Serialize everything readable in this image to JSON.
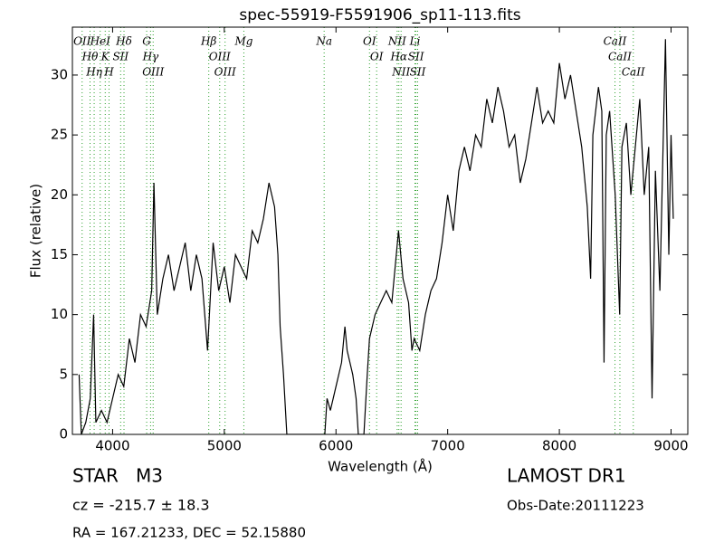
{
  "chart_data": {
    "type": "line",
    "title": "spec-55919-F5591906_sp11-113.fits",
    "x_label": "Wavelength (Å)",
    "y_label": "Flux (relative)",
    "xlim": [
      3640,
      9150
    ],
    "ylim": [
      0,
      34
    ],
    "xticks": [
      4000,
      5000,
      6000,
      7000,
      8000,
      9000
    ],
    "yticks": [
      0,
      5,
      10,
      15,
      20,
      25,
      30
    ],
    "color": "#000000",
    "line_color": "#2ca02c",
    "x": [
      3700,
      3720,
      3760,
      3800,
      3830,
      3850,
      3900,
      3950,
      4000,
      4050,
      4100,
      4150,
      4200,
      4250,
      4300,
      4350,
      4370,
      4400,
      4450,
      4500,
      4550,
      4600,
      4650,
      4700,
      4750,
      4800,
      4850,
      4900,
      4950,
      5000,
      5050,
      5100,
      5150,
      5200,
      5250,
      5300,
      5350,
      5400,
      5450,
      5480,
      5500,
      5530,
      5560,
      5900,
      5920,
      5950,
      6000,
      6050,
      6080,
      6100,
      6150,
      6180,
      6200,
      6250,
      6280,
      6300,
      6350,
      6400,
      6450,
      6500,
      6560,
      6600,
      6650,
      6680,
      6700,
      6750,
      6800,
      6850,
      6900,
      6950,
      7000,
      7050,
      7100,
      7150,
      7200,
      7250,
      7300,
      7350,
      7400,
      7450,
      7500,
      7550,
      7600,
      7650,
      7700,
      7750,
      7800,
      7850,
      7900,
      7950,
      8000,
      8050,
      8100,
      8150,
      8200,
      8250,
      8280,
      8300,
      8350,
      8380,
      8400,
      8420,
      8450,
      8500,
      8540,
      8560,
      8600,
      8640,
      8680,
      8720,
      8760,
      8800,
      8830,
      8860,
      8900,
      8950,
      8980,
      9000,
      9020
    ],
    "series": [
      {
        "values": [
          5,
          0,
          1,
          3,
          10,
          1,
          2,
          1,
          3,
          5,
          4,
          8,
          6,
          10,
          9,
          12,
          21,
          10,
          13,
          15,
          12,
          14,
          16,
          12,
          15,
          13,
          7,
          16,
          12,
          14,
          11,
          15,
          14,
          13,
          17,
          16,
          18,
          21,
          19,
          15,
          9,
          5,
          0,
          0,
          3,
          2,
          4,
          6,
          9,
          7,
          5,
          3,
          0,
          0,
          5,
          8,
          10,
          11,
          12,
          11,
          17,
          13,
          11,
          7,
          8,
          7,
          10,
          12,
          13,
          16,
          20,
          17,
          22,
          24,
          22,
          25,
          24,
          28,
          26,
          29,
          27,
          24,
          25,
          21,
          23,
          26,
          29,
          26,
          27,
          26,
          31,
          28,
          30,
          27,
          24,
          19,
          13,
          25,
          29,
          27,
          6,
          25,
          27,
          20,
          10,
          24,
          26,
          20,
          24,
          28,
          20,
          24,
          3,
          22,
          12,
          33,
          15,
          25,
          18
        ]
      }
    ],
    "lines": [
      {
        "label": "OII",
        "wavelength": 3727
      },
      {
        "label": "Hθ",
        "wavelength": 3798
      },
      {
        "label": "Hη",
        "wavelength": 3835
      },
      {
        "label": "HeI",
        "wavelength": 3889
      },
      {
        "label": "K",
        "wavelength": 3934
      },
      {
        "label": "H",
        "wavelength": 3968
      },
      {
        "label": "SII",
        "wavelength": 4072
      },
      {
        "label": "Hδ",
        "wavelength": 4102
      },
      {
        "label": "G",
        "wavelength": 4305
      },
      {
        "label": "Hγ",
        "wavelength": 4340
      },
      {
        "label": "OIII",
        "wavelength": 4363
      },
      {
        "label": "Hβ",
        "wavelength": 4861
      },
      {
        "label": "OIII",
        "wavelength": 4959
      },
      {
        "label": "OIII",
        "wavelength": 5007
      },
      {
        "label": "Mg",
        "wavelength": 5175
      },
      {
        "label": "Na",
        "wavelength": 5894
      },
      {
        "label": "OI",
        "wavelength": 6300
      },
      {
        "label": "OI",
        "wavelength": 6364
      },
      {
        "label": "NII",
        "wavelength": 6548
      },
      {
        "label": "Hα",
        "wavelength": 6563
      },
      {
        "label": "NII",
        "wavelength": 6583
      },
      {
        "label": "Li",
        "wavelength": 6707
      },
      {
        "label": "SII",
        "wavelength": 6716
      },
      {
        "label": "SII",
        "wavelength": 6731
      },
      {
        "label": "CaII",
        "wavelength": 8498
      },
      {
        "label": "CaII",
        "wavelength": 8542
      },
      {
        "label": "CaII",
        "wavelength": 8662
      }
    ],
    "annotations": {
      "object": "STAR   M3",
      "redshift": "cz = -215.7 ± 18.3",
      "survey": "LAMOST DR1",
      "obs_date": "Obs-Date:20111223",
      "coords": "RA = 167.21233, DEC = 52.15880"
    }
  }
}
